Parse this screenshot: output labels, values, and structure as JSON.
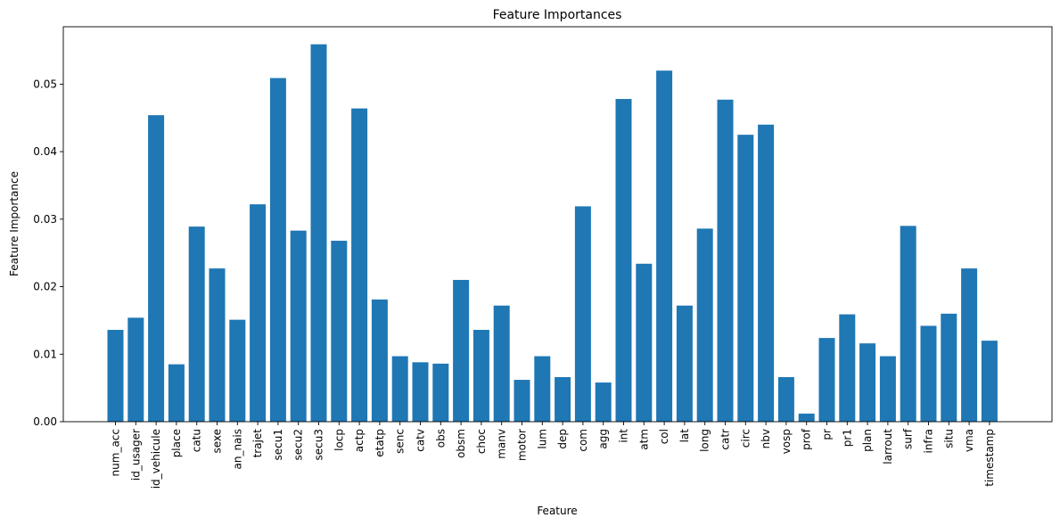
{
  "chart_data": {
    "type": "bar",
    "title": "Feature Importances",
    "xlabel": "Feature",
    "ylabel": "Feature Importance",
    "ylim": [
      0,
      0.0585
    ],
    "yticks": [
      "0.00",
      "0.01",
      "0.02",
      "0.03",
      "0.04",
      "0.05"
    ],
    "grid": false,
    "bar_color": "#1f77b4",
    "categories": [
      "num_acc",
      "id_usager",
      "id_vehicule",
      "place",
      "catu",
      "sexe",
      "an_nais",
      "trajet",
      "secu1",
      "secu2",
      "secu3",
      "locp",
      "actp",
      "etatp",
      "senc",
      "catv",
      "obs",
      "obsm",
      "choc",
      "manv",
      "motor",
      "lum",
      "dep",
      "com",
      "agg",
      "int",
      "atm",
      "col",
      "lat",
      "long",
      "catr",
      "circ",
      "nbv",
      "vosp",
      "prof",
      "pr",
      "pr1",
      "plan",
      "larrout",
      "surf",
      "infra",
      "situ",
      "vma",
      "timestamp"
    ],
    "values": [
      0.0136,
      0.0154,
      0.0454,
      0.0085,
      0.0289,
      0.0227,
      0.0151,
      0.0322,
      0.0509,
      0.0283,
      0.0559,
      0.0268,
      0.0464,
      0.0181,
      0.0097,
      0.0088,
      0.0086,
      0.021,
      0.0136,
      0.0172,
      0.0062,
      0.0097,
      0.0066,
      0.0319,
      0.0058,
      0.0478,
      0.0234,
      0.052,
      0.0172,
      0.0286,
      0.0477,
      0.0425,
      0.044,
      0.0066,
      0.0012,
      0.0124,
      0.0159,
      0.0116,
      0.0097,
      0.029,
      0.0142,
      0.016,
      0.0227,
      0.012
    ]
  }
}
